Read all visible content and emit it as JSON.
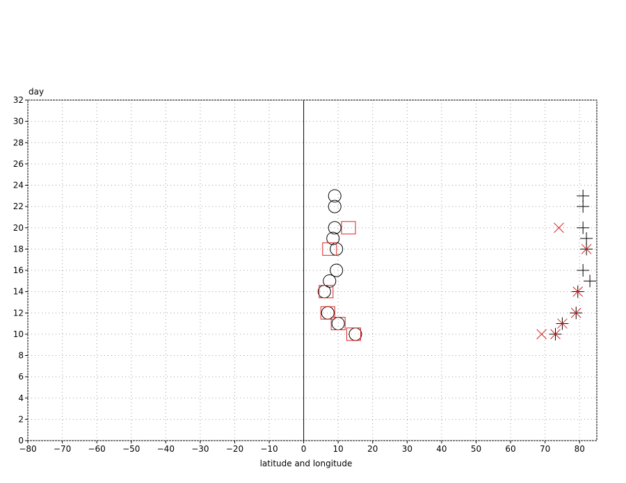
{
  "chart_data": {
    "type": "scatter",
    "title": "",
    "xlabel": "latitude and longitude",
    "ylabel": "day",
    "xlim": [
      -80,
      85
    ],
    "ylim": [
      0,
      32
    ],
    "x_ticks": [
      -80,
      -70,
      -60,
      -50,
      -40,
      -30,
      -20,
      -10,
      0,
      10,
      20,
      30,
      40,
      50,
      60,
      70,
      80
    ],
    "y_ticks": [
      0,
      2,
      4,
      6,
      8,
      10,
      12,
      14,
      16,
      18,
      20,
      22,
      24,
      26,
      28,
      30,
      32
    ],
    "grid": true,
    "reference_line_x": 0,
    "colors": {
      "black": "#000000",
      "red": "#dd2222",
      "grid": "#999999"
    },
    "series": [
      {
        "marker": "circle",
        "color": "#000000",
        "points": [
          {
            "x": 9,
            "y": 23
          },
          {
            "x": 9,
            "y": 22
          },
          {
            "x": 9,
            "y": 20
          },
          {
            "x": 8.5,
            "y": 19
          },
          {
            "x": 9.5,
            "y": 18
          },
          {
            "x": 9.5,
            "y": 16
          },
          {
            "x": 7.5,
            "y": 15
          },
          {
            "x": 6,
            "y": 14
          },
          {
            "x": 7,
            "y": 12
          },
          {
            "x": 10,
            "y": 11
          },
          {
            "x": 15,
            "y": 10
          }
        ]
      },
      {
        "marker": "square",
        "color": "#dd2222",
        "points": [
          {
            "x": 13,
            "y": 20
          },
          {
            "x": 7.5,
            "y": 18
          },
          {
            "x": 6.5,
            "y": 14
          },
          {
            "x": 7,
            "y": 12
          },
          {
            "x": 10,
            "y": 11
          },
          {
            "x": 14.5,
            "y": 10
          }
        ]
      },
      {
        "marker": "plus",
        "color": "#000000",
        "points": [
          {
            "x": 81,
            "y": 23
          },
          {
            "x": 81,
            "y": 22
          },
          {
            "x": 81,
            "y": 20
          },
          {
            "x": 82,
            "y": 19
          },
          {
            "x": 82,
            "y": 18
          },
          {
            "x": 81,
            "y": 16
          },
          {
            "x": 83,
            "y": 15
          },
          {
            "x": 79.5,
            "y": 14
          },
          {
            "x": 79,
            "y": 12
          },
          {
            "x": 75,
            "y": 11
          },
          {
            "x": 73,
            "y": 10
          }
        ]
      },
      {
        "marker": "cross",
        "color": "#dd2222",
        "points": [
          {
            "x": 74,
            "y": 20
          },
          {
            "x": 82,
            "y": 18
          },
          {
            "x": 79.5,
            "y": 14
          },
          {
            "x": 79,
            "y": 12
          },
          {
            "x": 75,
            "y": 11
          },
          {
            "x": 73,
            "y": 10
          },
          {
            "x": 69,
            "y": 10
          }
        ]
      }
    ]
  }
}
